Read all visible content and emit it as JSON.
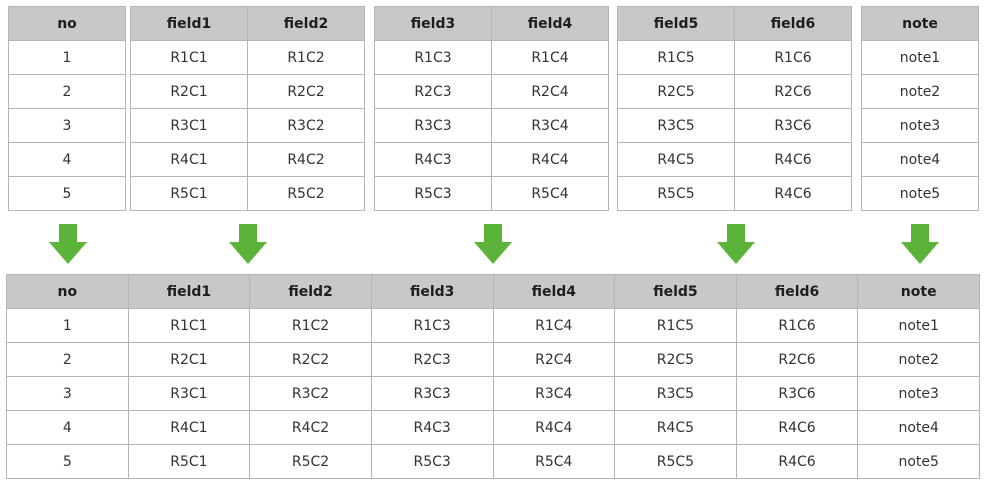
{
  "top_tables": [
    {
      "headers": [
        "no"
      ],
      "rows": [
        [
          "1"
        ],
        [
          "2"
        ],
        [
          "3"
        ],
        [
          "4"
        ],
        [
          "5"
        ]
      ]
    },
    {
      "headers": [
        "field1",
        "field2"
      ],
      "rows": [
        [
          "R1C1",
          "R1C2"
        ],
        [
          "R2C1",
          "R2C2"
        ],
        [
          "R3C1",
          "R3C2"
        ],
        [
          "R4C1",
          "R4C2"
        ],
        [
          "R5C1",
          "R5C2"
        ]
      ]
    },
    {
      "headers": [
        "field3",
        "field4"
      ],
      "rows": [
        [
          "R1C3",
          "R1C4"
        ],
        [
          "R2C3",
          "R2C4"
        ],
        [
          "R3C3",
          "R3C4"
        ],
        [
          "R4C3",
          "R4C4"
        ],
        [
          "R5C3",
          "R5C4"
        ]
      ]
    },
    {
      "headers": [
        "field5",
        "field6"
      ],
      "rows": [
        [
          "R1C5",
          "R1C6"
        ],
        [
          "R2C5",
          "R2C6"
        ],
        [
          "R3C5",
          "R3C6"
        ],
        [
          "R4C5",
          "R4C6"
        ],
        [
          "R5C5",
          "R4C6"
        ]
      ]
    },
    {
      "headers": [
        "note"
      ],
      "rows": [
        [
          "note1"
        ],
        [
          "note2"
        ],
        [
          "note3"
        ],
        [
          "note4"
        ],
        [
          "note5"
        ]
      ]
    }
  ],
  "merged_table": {
    "headers": [
      "no",
      "field1",
      "field2",
      "field3",
      "field4",
      "field5",
      "field6",
      "note"
    ],
    "rows": [
      [
        "1",
        "R1C1",
        "R1C2",
        "R1C3",
        "R1C4",
        "R1C5",
        "R1C6",
        "note1"
      ],
      [
        "2",
        "R2C1",
        "R2C2",
        "R2C3",
        "R2C4",
        "R2C5",
        "R2C6",
        "note2"
      ],
      [
        "3",
        "R3C1",
        "R3C2",
        "R3C3",
        "R3C4",
        "R3C5",
        "R3C6",
        "note3"
      ],
      [
        "4",
        "R4C1",
        "R4C2",
        "R4C3",
        "R4C4",
        "R4C5",
        "R4C6",
        "note4"
      ],
      [
        "5",
        "R5C1",
        "R5C2",
        "R5C3",
        "R5C4",
        "R5C5",
        "R4C6",
        "note5"
      ]
    ]
  },
  "colors": {
    "header_bg": "#c6c8ca",
    "border": "#b5b5b5",
    "arrow": "#5bb33a"
  },
  "arrow_icon": "down-arrow-icon"
}
